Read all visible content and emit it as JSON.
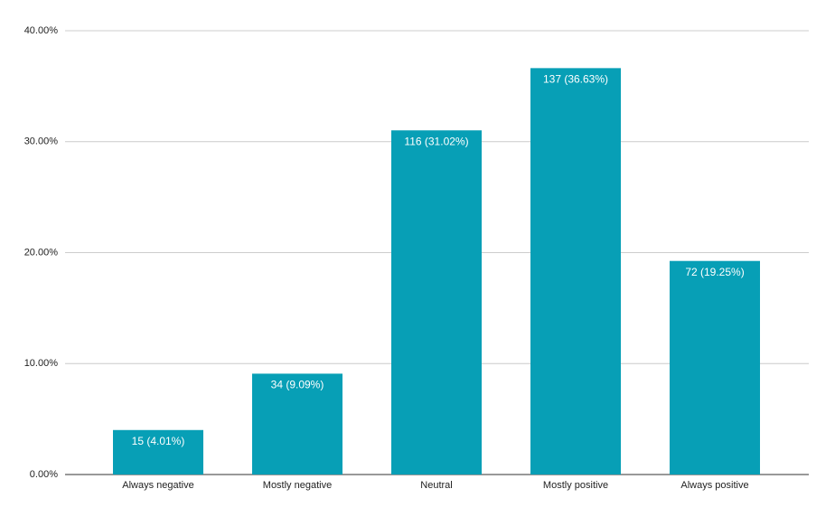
{
  "chart_data": {
    "type": "bar",
    "categories": [
      "Always negative",
      "Mostly negative",
      "Neutral",
      "Mostly positive",
      "Always positive"
    ],
    "values": [
      4.01,
      9.09,
      31.02,
      36.63,
      19.25
    ],
    "value_labels": [
      "15 (4.01%)",
      "34 (9.09%)",
      "116 (31.02%)",
      "137 (36.63%)",
      "72 (19.25%)"
    ],
    "color": "#079fb6",
    "ylim": [
      0,
      40
    ],
    "yticks": [
      {
        "value": 0,
        "label": "0.00%"
      },
      {
        "value": 10,
        "label": "10.00%"
      },
      {
        "value": 20,
        "label": "20.00%"
      },
      {
        "value": 30,
        "label": "30.00%"
      },
      {
        "value": 40,
        "label": "40.00%"
      }
    ],
    "grid": true
  }
}
